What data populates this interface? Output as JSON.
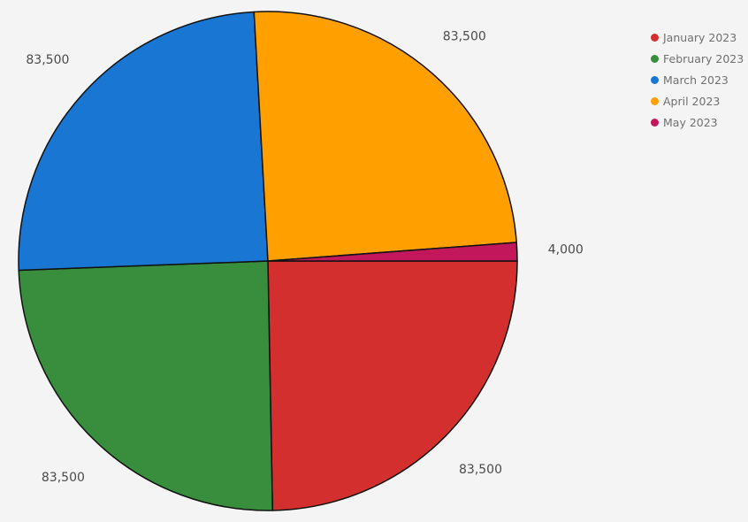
{
  "chart_data": {
    "type": "pie",
    "series": [
      {
        "name": "January 2023",
        "value": 83500,
        "label": "83,500",
        "color": "#d32f2f"
      },
      {
        "name": "February 2023",
        "value": 83500,
        "label": "83,500",
        "color": "#388e3c"
      },
      {
        "name": "March 2023",
        "value": 83500,
        "label": "83,500",
        "color": "#1976d2"
      },
      {
        "name": "April 2023",
        "value": 83500,
        "label": "83,500",
        "color": "#ffa000"
      },
      {
        "name": "May 2023",
        "value": 4000,
        "label": "4,000",
        "color": "#c2185b"
      }
    ],
    "legend_position": "top-right"
  }
}
